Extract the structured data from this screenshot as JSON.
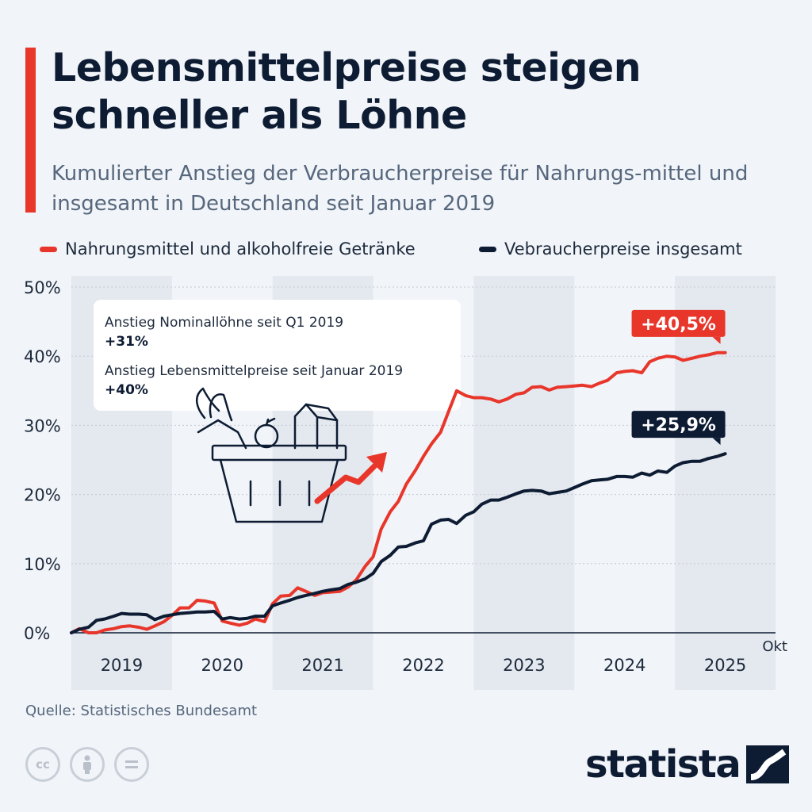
{
  "header": {
    "title": "Lebensmittelpreise steigen schneller als Löhne",
    "subtitle": "Kumulierter Anstieg der Verbraucherpreise für Nahrungs-mittel und insgesamt in Deutschland seit Januar 2019"
  },
  "colors": {
    "accent": "#e8362b",
    "navy": "#0d1c33",
    "background": "#f1f4f8",
    "band": "#e4e8ef"
  },
  "annotation": {
    "line1_label": "Anstieg Nominallöhne seit Q1 2019",
    "line1_value": "+31%",
    "line2_label": "Anstieg Lebensmittelpreise seit Januar 2019",
    "line2_value": "+40%",
    "illustration_icon": "shopping-basket-with-rising-arrow-icon"
  },
  "chart_data": {
    "type": "line",
    "ylim": [
      0,
      50
    ],
    "yticks": [
      "0%",
      "10%",
      "20%",
      "30%",
      "40%",
      "50%"
    ],
    "ytick_values": [
      0,
      10,
      20,
      30,
      40,
      50
    ],
    "x_categories": [
      "2019",
      "2020",
      "2021",
      "2022",
      "2023",
      "2024",
      "2025"
    ],
    "x_end_label": "Okt",
    "grid": true,
    "legend_position": "top",
    "series": [
      {
        "name": "Nahrungsmittel und alkoholfreie Getränke",
        "color": "#e8362b",
        "end_label": "+40,5%",
        "points": [
          [
            2019.0,
            0.0
          ],
          [
            2019.08,
            0.6
          ],
          [
            2019.17,
            0.0
          ],
          [
            2019.25,
            0.0
          ],
          [
            2019.33,
            0.4
          ],
          [
            2019.42,
            0.6
          ],
          [
            2019.5,
            0.9
          ],
          [
            2019.58,
            1.0
          ],
          [
            2019.67,
            0.8
          ],
          [
            2019.75,
            0.5
          ],
          [
            2019.83,
            1.0
          ],
          [
            2019.92,
            1.6
          ],
          [
            2020.0,
            2.5
          ],
          [
            2020.08,
            3.6
          ],
          [
            2020.17,
            3.6
          ],
          [
            2020.25,
            4.7
          ],
          [
            2020.33,
            4.6
          ],
          [
            2020.42,
            4.3
          ],
          [
            2020.5,
            1.7
          ],
          [
            2020.58,
            1.4
          ],
          [
            2020.67,
            1.1
          ],
          [
            2020.75,
            1.4
          ],
          [
            2020.83,
            2.0
          ],
          [
            2020.92,
            1.6
          ],
          [
            2021.0,
            4.2
          ],
          [
            2021.08,
            5.3
          ],
          [
            2021.17,
            5.4
          ],
          [
            2021.25,
            6.5
          ],
          [
            2021.33,
            6.0
          ],
          [
            2021.42,
            5.4
          ],
          [
            2021.5,
            5.8
          ],
          [
            2021.58,
            5.9
          ],
          [
            2021.67,
            6.0
          ],
          [
            2021.75,
            6.6
          ],
          [
            2021.83,
            7.6
          ],
          [
            2021.92,
            9.6
          ],
          [
            2022.0,
            11.0
          ],
          [
            2022.08,
            15.0
          ],
          [
            2022.17,
            17.5
          ],
          [
            2022.25,
            19.0
          ],
          [
            2022.33,
            21.5
          ],
          [
            2022.42,
            23.5
          ],
          [
            2022.5,
            25.5
          ],
          [
            2022.58,
            27.3
          ],
          [
            2022.67,
            29.0
          ],
          [
            2022.75,
            32.0
          ],
          [
            2022.83,
            35.0
          ],
          [
            2022.92,
            34.3
          ],
          [
            2023.0,
            34.0
          ],
          [
            2023.08,
            34.0
          ],
          [
            2023.17,
            33.8
          ],
          [
            2023.25,
            33.4
          ],
          [
            2023.33,
            33.8
          ],
          [
            2023.42,
            34.5
          ],
          [
            2023.5,
            34.7
          ],
          [
            2023.58,
            35.5
          ],
          [
            2023.67,
            35.6
          ],
          [
            2023.75,
            35.1
          ],
          [
            2023.83,
            35.5
          ],
          [
            2023.92,
            35.6
          ],
          [
            2024.0,
            35.7
          ],
          [
            2024.08,
            35.8
          ],
          [
            2024.17,
            35.6
          ],
          [
            2024.25,
            36.1
          ],
          [
            2024.33,
            36.5
          ],
          [
            2024.42,
            37.6
          ],
          [
            2024.5,
            37.8
          ],
          [
            2024.58,
            37.9
          ],
          [
            2024.67,
            37.6
          ],
          [
            2024.75,
            39.2
          ],
          [
            2024.83,
            39.7
          ],
          [
            2024.92,
            40.0
          ],
          [
            2025.0,
            39.9
          ],
          [
            2025.08,
            39.4
          ],
          [
            2025.17,
            39.7
          ],
          [
            2025.25,
            40.0
          ],
          [
            2025.33,
            40.2
          ],
          [
            2025.42,
            40.5
          ],
          [
            2025.5,
            40.5
          ]
        ]
      },
      {
        "name": "Vebraucherpreise insgesamt",
        "color": "#0d1c33",
        "end_label": "+25,9%",
        "points": [
          [
            2019.0,
            0.0
          ],
          [
            2019.08,
            0.5
          ],
          [
            2019.17,
            0.8
          ],
          [
            2019.25,
            1.8
          ],
          [
            2019.33,
            2.0
          ],
          [
            2019.42,
            2.4
          ],
          [
            2019.5,
            2.8
          ],
          [
            2019.58,
            2.7
          ],
          [
            2019.67,
            2.7
          ],
          [
            2019.75,
            2.6
          ],
          [
            2019.83,
            1.9
          ],
          [
            2019.92,
            2.4
          ],
          [
            2020.0,
            2.6
          ],
          [
            2020.08,
            2.8
          ],
          [
            2020.17,
            2.9
          ],
          [
            2020.25,
            3.0
          ],
          [
            2020.33,
            3.0
          ],
          [
            2020.42,
            3.1
          ],
          [
            2020.5,
            2.0
          ],
          [
            2020.58,
            2.2
          ],
          [
            2020.67,
            2.0
          ],
          [
            2020.75,
            2.1
          ],
          [
            2020.83,
            2.4
          ],
          [
            2020.92,
            2.4
          ],
          [
            2021.0,
            3.9
          ],
          [
            2021.08,
            4.3
          ],
          [
            2021.17,
            4.7
          ],
          [
            2021.25,
            5.1
          ],
          [
            2021.33,
            5.4
          ],
          [
            2021.42,
            5.7
          ],
          [
            2021.5,
            6.0
          ],
          [
            2021.58,
            6.2
          ],
          [
            2021.67,
            6.4
          ],
          [
            2021.75,
            7.0
          ],
          [
            2021.83,
            7.3
          ],
          [
            2021.92,
            7.8
          ],
          [
            2022.0,
            8.6
          ],
          [
            2022.08,
            10.3
          ],
          [
            2022.17,
            11.2
          ],
          [
            2022.25,
            12.4
          ],
          [
            2022.33,
            12.5
          ],
          [
            2022.42,
            13.0
          ],
          [
            2022.5,
            13.3
          ],
          [
            2022.58,
            15.7
          ],
          [
            2022.67,
            16.3
          ],
          [
            2022.75,
            16.4
          ],
          [
            2022.83,
            15.8
          ],
          [
            2022.92,
            17.0
          ],
          [
            2023.0,
            17.5
          ],
          [
            2023.08,
            18.6
          ],
          [
            2023.17,
            19.2
          ],
          [
            2023.25,
            19.2
          ],
          [
            2023.33,
            19.6
          ],
          [
            2023.42,
            20.1
          ],
          [
            2023.5,
            20.5
          ],
          [
            2023.58,
            20.6
          ],
          [
            2023.67,
            20.5
          ],
          [
            2023.75,
            20.1
          ],
          [
            2023.83,
            20.3
          ],
          [
            2023.92,
            20.5
          ],
          [
            2024.0,
            21.0
          ],
          [
            2024.08,
            21.5
          ],
          [
            2024.17,
            22.0
          ],
          [
            2024.25,
            22.1
          ],
          [
            2024.33,
            22.2
          ],
          [
            2024.42,
            22.6
          ],
          [
            2024.5,
            22.6
          ],
          [
            2024.58,
            22.5
          ],
          [
            2024.67,
            23.1
          ],
          [
            2024.75,
            22.8
          ],
          [
            2024.83,
            23.4
          ],
          [
            2024.92,
            23.2
          ],
          [
            2025.0,
            24.1
          ],
          [
            2025.08,
            24.6
          ],
          [
            2025.17,
            24.8
          ],
          [
            2025.25,
            24.8
          ],
          [
            2025.33,
            25.2
          ],
          [
            2025.42,
            25.5
          ],
          [
            2025.5,
            25.9
          ]
        ]
      }
    ]
  },
  "footer": {
    "source": "Quelle: Statistisches Bundesamt",
    "license_icons": [
      "cc-icon",
      "by-icon",
      "nd-icon"
    ],
    "brand": "statista"
  }
}
